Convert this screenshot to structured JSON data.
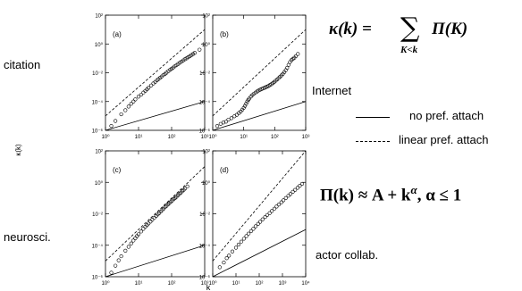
{
  "network_labels": {
    "citation": "citation",
    "internet": "Internet",
    "neuro": "neurosci.",
    "actor": "actor collab."
  },
  "formulas": {
    "kappa_lhs": "κ(k) =",
    "kappa_sum": "∑",
    "kappa_rhs": "Π(K)",
    "kappa_sub": "K<k",
    "pi_formula": "Π(k) ≈ A + k",
    "pi_exp": "α",
    "pi_cond": ",  α ≤ 1"
  },
  "legend": {
    "solid_label": "no pref. attach",
    "dashed_label": "linear pref. attach"
  },
  "shared_axes": {
    "xlabel": "k",
    "ylabel": "κ(k)"
  },
  "chart_data": [
    {
      "type": "scatter",
      "panel_label": "(a)",
      "xscale": "log",
      "yscale": "log",
      "xlim_exp": [
        0,
        3
      ],
      "ylim_exp": [
        -6,
        2
      ],
      "x_tick_labels": [
        "10⁰",
        "10¹",
        "10²",
        "10³"
      ],
      "y_tick_labels": [
        "10⁻⁶",
        "10⁻⁴",
        "10⁻²",
        "10⁰",
        "10²"
      ],
      "points": [
        [
          1.5,
          2e-06
        ],
        [
          2,
          4.5e-06
        ],
        [
          3,
          1.3e-05
        ],
        [
          4,
          2.5e-05
        ],
        [
          5,
          4.5e-05
        ],
        [
          6,
          7e-05
        ],
        [
          7,
          0.0001
        ],
        [
          8,
          0.00014
        ],
        [
          10,
          0.00022
        ],
        [
          12,
          0.0003
        ],
        [
          14,
          0.00042
        ],
        [
          16,
          0.00055
        ],
        [
          18,
          0.0007
        ],
        [
          20,
          0.0009
        ],
        [
          24,
          0.0013
        ],
        [
          28,
          0.0018
        ],
        [
          32,
          0.0023
        ],
        [
          36,
          0.003
        ],
        [
          40,
          0.0036
        ],
        [
          45,
          0.0045
        ],
        [
          50,
          0.0055
        ],
        [
          56,
          0.0068
        ],
        [
          63,
          0.0082
        ],
        [
          70,
          0.01
        ],
        [
          80,
          0.013
        ],
        [
          90,
          0.016
        ],
        [
          100,
          0.019
        ],
        [
          112,
          0.023
        ],
        [
          125,
          0.028
        ],
        [
          140,
          0.034
        ],
        [
          158,
          0.041
        ],
        [
          178,
          0.05
        ],
        [
          200,
          0.06
        ],
        [
          224,
          0.072
        ],
        [
          251,
          0.087
        ],
        [
          282,
          0.1
        ],
        [
          316,
          0.12
        ],
        [
          355,
          0.14
        ],
        [
          398,
          0.17
        ],
        [
          447,
          0.2
        ],
        [
          501,
          0.24
        ],
        [
          700,
          0.4
        ]
      ],
      "solid_line": [
        [
          1,
          1e-06
        ],
        [
          1000,
          0.0001
        ]
      ],
      "dashed_line": [
        [
          1,
          1e-05
        ],
        [
          1000,
          10
        ]
      ]
    },
    {
      "type": "scatter",
      "panel_label": "(b)",
      "xscale": "log",
      "yscale": "log",
      "xlim_exp": [
        0,
        3
      ],
      "ylim_exp": [
        -6,
        2
      ],
      "x_tick_labels": [
        "10⁰",
        "10¹",
        "10²",
        "10³"
      ],
      "y_tick_labels": [
        "10⁻⁶",
        "10⁻⁴",
        "10⁻²",
        "10⁰",
        "10²"
      ],
      "points": [
        [
          1.4,
          2e-06
        ],
        [
          1.8,
          2.8e-06
        ],
        [
          2.2,
          3.5e-06
        ],
        [
          2.7,
          4e-06
        ],
        [
          3.2,
          5.5e-06
        ],
        [
          4,
          7e-06
        ],
        [
          5,
          9.5e-06
        ],
        [
          6,
          1.2e-05
        ],
        [
          7,
          1.6e-05
        ],
        [
          8,
          2e-05
        ],
        [
          9,
          2.7e-05
        ],
        [
          10,
          3.6e-05
        ],
        [
          11,
          5e-05
        ],
        [
          12,
          7e-05
        ],
        [
          13,
          0.0001
        ],
        [
          14,
          0.00013
        ],
        [
          15,
          0.00016
        ],
        [
          17,
          0.00022
        ],
        [
          19,
          0.00028
        ],
        [
          21,
          0.00034
        ],
        [
          24,
          0.00042
        ],
        [
          27,
          0.0005
        ],
        [
          30,
          0.00058
        ],
        [
          34,
          0.00066
        ],
        [
          38,
          0.00074
        ],
        [
          42,
          0.00082
        ],
        [
          47,
          0.0009
        ],
        [
          52,
          0.001
        ],
        [
          57,
          0.0011
        ],
        [
          63,
          0.0012
        ],
        [
          70,
          0.0014
        ],
        [
          78,
          0.0016
        ],
        [
          87,
          0.0019
        ],
        [
          97,
          0.0023
        ],
        [
          108,
          0.0028
        ],
        [
          120,
          0.0034
        ],
        [
          133,
          0.0042
        ],
        [
          148,
          0.0052
        ],
        [
          165,
          0.0065
        ],
        [
          183,
          0.0082
        ],
        [
          204,
          0.011
        ],
        [
          227,
          0.015
        ],
        [
          252,
          0.022
        ],
        [
          280,
          0.035
        ],
        [
          311,
          0.055
        ],
        [
          346,
          0.075
        ],
        [
          385,
          0.09
        ],
        [
          430,
          0.11
        ],
        [
          480,
          0.14
        ],
        [
          560,
          0.2
        ]
      ],
      "solid_line": [
        [
          1,
          1e-06
        ],
        [
          1000,
          0.0001
        ]
      ],
      "dashed_line": [
        [
          1,
          1e-05
        ],
        [
          1000,
          10
        ]
      ]
    },
    {
      "type": "scatter",
      "panel_label": "(c)",
      "xscale": "log",
      "yscale": "log",
      "xlim_exp": [
        0,
        3
      ],
      "ylim_exp": [
        -6,
        2
      ],
      "x_tick_labels": [
        "10⁰",
        "10¹",
        "10²",
        "10³"
      ],
      "y_tick_labels": [
        "10⁻⁶",
        "10⁻⁴",
        "10⁻²",
        "10⁰",
        "10²"
      ],
      "points": [
        [
          1.5,
          1.8e-06
        ],
        [
          2,
          5e-06
        ],
        [
          2.5,
          1.1e-05
        ],
        [
          3,
          2e-05
        ],
        [
          4,
          4.5e-05
        ],
        [
          5,
          8e-05
        ],
        [
          6,
          0.00013
        ],
        [
          7,
          0.0002
        ],
        [
          8,
          0.00028
        ],
        [
          9,
          0.00038
        ],
        [
          10,
          0.0005
        ],
        [
          12,
          0.00075
        ],
        [
          14,
          0.0011
        ],
        [
          16,
          0.0015
        ],
        [
          18,
          0.0019
        ],
        [
          20,
          0.0024
        ],
        [
          23,
          0.0032
        ],
        [
          26,
          0.0042
        ],
        [
          30,
          0.0055
        ],
        [
          34,
          0.0072
        ],
        [
          38,
          0.009
        ],
        [
          42,
          0.011
        ],
        [
          47,
          0.014
        ],
        [
          52,
          0.017
        ],
        [
          57,
          0.021
        ],
        [
          63,
          0.026
        ],
        [
          70,
          0.032
        ],
        [
          77,
          0.039
        ],
        [
          85,
          0.047
        ],
        [
          94,
          0.057
        ],
        [
          104,
          0.07
        ],
        [
          115,
          0.085
        ],
        [
          127,
          0.1
        ],
        [
          140,
          0.12
        ],
        [
          155,
          0.15
        ],
        [
          171,
          0.18
        ],
        [
          189,
          0.22
        ],
        [
          209,
          0.27
        ],
        [
          231,
          0.33
        ],
        [
          255,
          0.4
        ],
        [
          300,
          0.55
        ]
      ],
      "solid_line": [
        [
          1,
          1e-06
        ],
        [
          1000,
          0.0001
        ]
      ],
      "dashed_line": [
        [
          1,
          1e-05
        ],
        [
          1000,
          10
        ]
      ]
    },
    {
      "type": "scatter",
      "panel_label": "(d)",
      "xscale": "log",
      "yscale": "log",
      "xlim_exp": [
        0,
        4
      ],
      "ylim_exp": [
        -6,
        2
      ],
      "x_tick_labels": [
        "10⁰",
        "10¹",
        "10²",
        "10³",
        "10⁴"
      ],
      "y_tick_labels": [
        "10⁻⁶",
        "10⁻⁴",
        "10⁻²",
        "10⁰",
        "10²"
      ],
      "points": [
        [
          2,
          4e-06
        ],
        [
          3,
          8e-06
        ],
        [
          4,
          1.5e-05
        ],
        [
          5,
          2.2e-05
        ],
        [
          7,
          4e-05
        ],
        [
          10,
          7e-05
        ],
        [
          13,
          0.00011
        ],
        [
          17,
          0.00017
        ],
        [
          22,
          0.00026
        ],
        [
          28,
          0.00038
        ],
        [
          35,
          0.00055
        ],
        [
          45,
          0.0008
        ],
        [
          56,
          0.0011
        ],
        [
          70,
          0.0016
        ],
        [
          90,
          0.0023
        ],
        [
          110,
          0.0031
        ],
        [
          140,
          0.0044
        ],
        [
          180,
          0.0062
        ],
        [
          220,
          0.0083
        ],
        [
          280,
          0.011
        ],
        [
          350,
          0.015
        ],
        [
          450,
          0.021
        ],
        [
          560,
          0.029
        ],
        [
          700,
          0.039
        ],
        [
          900,
          0.054
        ],
        [
          1100,
          0.072
        ],
        [
          1400,
          0.1
        ],
        [
          1800,
          0.14
        ],
        [
          2200,
          0.18
        ],
        [
          2800,
          0.25
        ],
        [
          3500,
          0.33
        ],
        [
          4500,
          0.45
        ],
        [
          5600,
          0.6
        ],
        [
          7000,
          0.8
        ]
      ],
      "solid_line": [
        [
          1,
          1e-06
        ],
        [
          10000,
          0.001
        ]
      ],
      "dashed_line": [
        [
          1,
          1e-05
        ],
        [
          10000,
          100
        ]
      ]
    }
  ]
}
